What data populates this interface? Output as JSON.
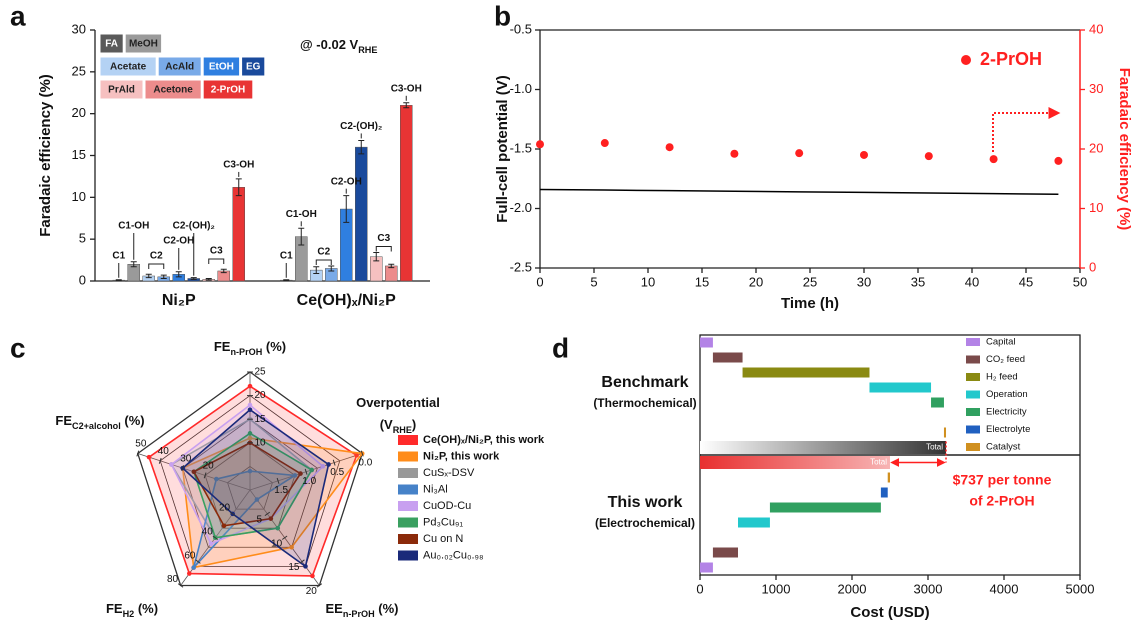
{
  "chart_data": [
    {
      "type": "bar",
      "label": "a",
      "ylabel": "Faradaic efficiency (%)",
      "annotation": [
        "@ -0.02 V",
        "RHE"
      ],
      "categories": [
        "Ni₂P",
        "Ce(OH)ₓ/Ni₂P"
      ],
      "group_labels": [
        "C1",
        "C1-OH",
        "C2",
        "C2-OH",
        "C2-(OH)₂",
        "C3",
        "C3-OH"
      ],
      "ylim": [
        0,
        30
      ],
      "yticks": [
        0,
        5,
        10,
        15,
        20,
        25,
        30
      ],
      "series": [
        {
          "name": "FA",
          "color": "#5a5a5a",
          "values": [
            0.1,
            0.1
          ],
          "errors": [
            0.05,
            0.05
          ]
        },
        {
          "name": "MeOH",
          "color": "#9a9a9a",
          "values": [
            2.0,
            5.3
          ],
          "errors": [
            0.3,
            1.0
          ]
        },
        {
          "name": "Acetate",
          "color": "#b4d2f4",
          "values": [
            0.6,
            1.3
          ],
          "errors": [
            0.2,
            0.4
          ]
        },
        {
          "name": "AcAld",
          "color": "#79aae8",
          "values": [
            0.5,
            1.5
          ],
          "errors": [
            0.2,
            0.3
          ]
        },
        {
          "name": "EtOH",
          "color": "#2f7fe0",
          "values": [
            0.8,
            8.6
          ],
          "errors": [
            0.3,
            1.6
          ]
        },
        {
          "name": "EG",
          "color": "#1a4a9c",
          "values": [
            0.3,
            16.0
          ],
          "errors": [
            0.1,
            0.8
          ]
        },
        {
          "name": "PrAld",
          "color": "#f6c0c0",
          "values": [
            0.2,
            2.9
          ],
          "errors": [
            0.1,
            0.5
          ]
        },
        {
          "name": "Acetone",
          "color": "#ec8c8c",
          "values": [
            1.2,
            1.8
          ],
          "errors": [
            0.2,
            0.2
          ]
        },
        {
          "name": "2-PrOH",
          "color": "#e83434",
          "values": [
            11.2,
            21.0
          ],
          "errors": [
            1.0,
            0.3
          ]
        }
      ]
    },
    {
      "type": "scatter",
      "label": "b",
      "xlabel": "Time (h)",
      "ylabel": "Full-cell potential (V)",
      "y2label": "Faradaic efficiency (%)",
      "x": [
        0,
        6,
        12,
        18,
        24,
        30,
        36,
        42,
        48
      ],
      "xlim": [
        0,
        50
      ],
      "xticks": [
        0,
        5,
        10,
        15,
        20,
        25,
        30,
        35,
        40,
        45,
        50
      ],
      "ylim": [
        -2.5,
        -0.5
      ],
      "yticks": [
        -2.5,
        {
          "value": -2,
          "label": "-2.0"
        },
        -1.5,
        {
          "value": -1,
          "label": "-1.0"
        },
        -0.5
      ],
      "y2lim": [
        0,
        40
      ],
      "y2ticks": [
        0,
        10,
        20,
        30,
        40
      ],
      "y2color": "#ff2020",
      "series": [
        {
          "mark": "line",
          "color": "#000000",
          "values": [
            -1.84,
            -1.845,
            -1.85,
            -1.855,
            -1.86,
            -1.865,
            -1.87,
            -1.875,
            -1.88
          ]
        },
        {
          "name": "2-PrOH",
          "mark": "dot",
          "axis": "y2",
          "color": "#ff2020",
          "values": [
            20.8,
            21.0,
            20.3,
            19.2,
            19.3,
            19.0,
            18.8,
            18.3,
            18.0
          ]
        }
      ]
    },
    {
      "type": "radar",
      "label": "c",
      "axes": [
        {
          "label": [
            [
              "FE",
              "n-PrOH",
              " (%)"
            ]
          ],
          "lim": [
            0,
            25
          ],
          "ticks": [
            10,
            15,
            20,
            25
          ]
        },
        {
          "label": [
            [
              "Overpotential"
            ],
            [
              "(V",
              "RHE",
              ")"
            ]
          ],
          "lim": [
            2,
            0
          ],
          "ticks": [
            {
              "value": 0,
              "label": "0.0"
            },
            0.5,
            {
              "value": 1,
              "label": "1.0"
            },
            1.5
          ]
        },
        {
          "label": [
            [
              "EE",
              "n-PrOH",
              " (%)"
            ]
          ],
          "lim": [
            0,
            20
          ],
          "ticks": [
            5,
            10,
            15,
            20
          ]
        },
        {
          "label": [
            [
              "FE",
              "H2",
              " (%)"
            ]
          ],
          "lim": [
            0,
            80
          ],
          "ticks": [
            20,
            40,
            60,
            80
          ]
        },
        {
          "label": [
            [
              "FE",
              "C2+alcohol",
              " (%)"
            ]
          ],
          "lim": [
            0,
            50
          ],
          "ticks": [
            20,
            30,
            40,
            50
          ]
        }
      ],
      "series": [
        {
          "name": "Ce(OH)ₓ/Ni₂P, this work",
          "color": "#ff2a2a",
          "values": [
            22,
            0.1,
            18,
            70,
            45
          ]
        },
        {
          "name": "Ni₂P, this work",
          "color": "#ff8c1a",
          "values": [
            11,
            0.0,
            12,
            65,
            30
          ]
        },
        {
          "name": "CuSₓ-DSV",
          "color": "#999999",
          "values": [
            15,
            0.9,
            8,
            40,
            35
          ]
        },
        {
          "name": "Ni₃Al",
          "color": "#4682c8",
          "values": [
            4,
            1.2,
            2,
            65,
            15
          ]
        },
        {
          "name": "CuOD-Cu",
          "color": "#c8a0f0",
          "values": [
            18,
            0.7,
            6,
            45,
            35
          ]
        },
        {
          "name": "Pd₃Cu₉₁",
          "color": "#3aa060",
          "values": [
            12,
            0.9,
            8,
            40,
            25
          ]
        },
        {
          "name": "Cu on N",
          "color": "#8b2a0a",
          "values": [
            10,
            1.1,
            6,
            30,
            25
          ]
        },
        {
          "name": "Au₀.₀₂Cu₀.₉₈",
          "color": "#1a2a7a",
          "values": [
            17,
            0.6,
            16,
            20,
            30
          ]
        }
      ]
    },
    {
      "type": "waterfall",
      "label": "d",
      "xlabel": "Cost (USD)",
      "categories": [
        "Benchmark",
        "This work"
      ],
      "category_notes": [
        "(Thermochemical)",
        "(Electrochemical)"
      ],
      "xlim": [
        0,
        5000
      ],
      "xticks": [
        0,
        1000,
        2000,
        3000,
        4000,
        5000
      ],
      "totals": [
        3237,
        2500
      ],
      "total_label": "Total",
      "annotation": [
        "$737 per tonne",
        "of 2-PrOH"
      ],
      "series": [
        {
          "name": "Capital",
          "color": "#b383e6",
          "values": [
            170,
            170
          ]
        },
        {
          "name": "CO₂ feed",
          "color": "#7a4a4a",
          "values": [
            390,
            330
          ]
        },
        {
          "name": "H₂ feed",
          "color": "#8a8a12",
          "values": [
            1670,
            null
          ]
        },
        {
          "name": "Operation",
          "color": "#22c8cc",
          "values": [
            810,
            420
          ]
        },
        {
          "name": "Electricity",
          "color": "#30a060",
          "values": [
            170,
            1460
          ]
        },
        {
          "name": "Electrolyte",
          "color": "#2060c0",
          "values": [
            null,
            90
          ]
        },
        {
          "name": "Catalyst",
          "color": "#d09020",
          "values": [
            27,
            30
          ]
        }
      ]
    }
  ]
}
